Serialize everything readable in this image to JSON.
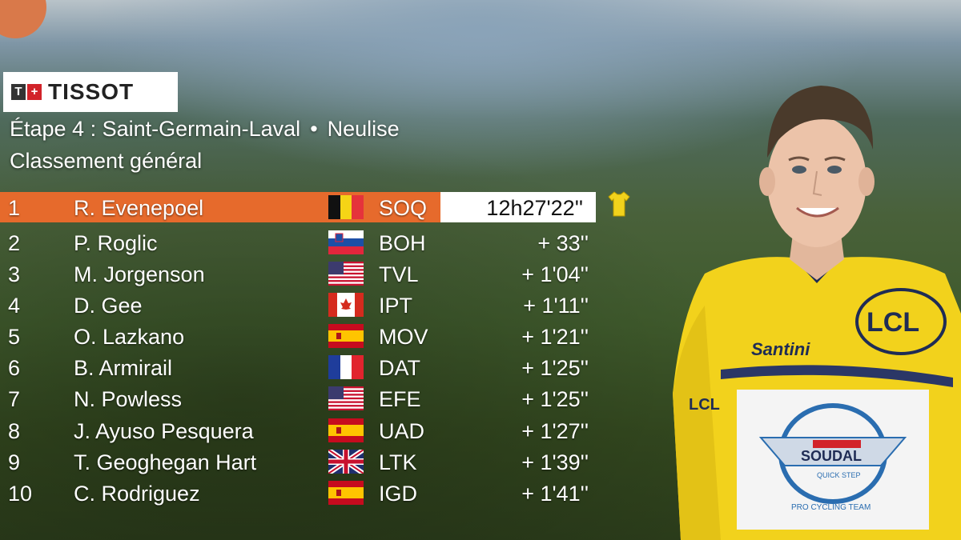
{
  "header": {
    "brand": "TISSOT",
    "brand_mark": [
      "T",
      "+"
    ],
    "stage_label": "Étape 4 : Saint-Germain-Laval",
    "stage_finish": "Neulise",
    "classification": "Classement général"
  },
  "colors": {
    "leader_bar": "#e66a2c",
    "leader_time_box": "#ffffff",
    "yellow_jersey": "#f2d21c"
  },
  "standings": [
    {
      "rank": "1",
      "name": "R. Evenepoel",
      "flag": "BE",
      "team": "SOQ",
      "time": "12h27'22''"
    },
    {
      "rank": "2",
      "name": "P. Roglic",
      "flag": "SI",
      "team": "BOH",
      "time": "+ 33''"
    },
    {
      "rank": "3",
      "name": "M. Jorgenson",
      "flag": "US",
      "team": "TVL",
      "time": "+ 1'04''"
    },
    {
      "rank": "4",
      "name": "D. Gee",
      "flag": "CA",
      "team": "IPT",
      "time": "+ 1'11''"
    },
    {
      "rank": "5",
      "name": "O. Lazkano",
      "flag": "ES",
      "team": "MOV",
      "time": "+ 1'21''"
    },
    {
      "rank": "6",
      "name": "B. Armirail",
      "flag": "FR",
      "team": "DAT",
      "time": "+ 1'25''"
    },
    {
      "rank": "7",
      "name": "N. Powless",
      "flag": "US",
      "team": "EFE",
      "time": "+ 1'25''"
    },
    {
      "rank": "8",
      "name": "J. Ayuso Pesquera",
      "flag": "ES",
      "team": "UAD",
      "time": "+ 1'27''"
    },
    {
      "rank": "9",
      "name": "T. Geoghegan Hart",
      "flag": "GB",
      "team": "LTK",
      "time": "+ 1'39''"
    },
    {
      "rank": "10",
      "name": "C. Rodriguez",
      "flag": "ES",
      "team": "IGD",
      "time": "+ 1'41''"
    }
  ],
  "leader_jersey_icon": "yellow-jersey-icon",
  "rider_jersey": {
    "sponsor_chest": "LCL",
    "sponsor_side": "Santini",
    "sponsor_sleeve": "LCL",
    "team_badge": "SOUDAL",
    "team_badge_sub": "QUICK STEP",
    "team_ring": "PRO CYCLING TEAM"
  }
}
